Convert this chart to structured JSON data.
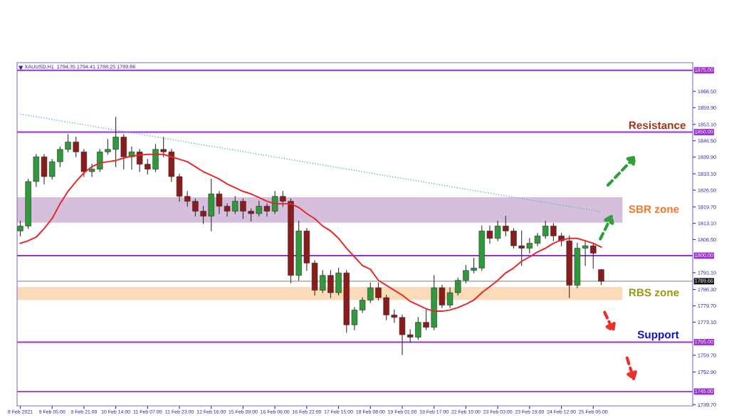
{
  "chart_data": {
    "type": "candlestick",
    "title": "XAUUSD,H1  1794.35 1794.41 1788.25 1789.66",
    "categories": [
      "8 Feb 2021",
      null,
      null,
      null,
      "9 Feb 05:00",
      null,
      null,
      null,
      "9 Feb 21:00",
      null,
      null,
      null,
      "10 Feb 14:00",
      null,
      null,
      null,
      "11 Feb 07:00",
      null,
      null,
      null,
      "11 Feb 23:00",
      null,
      null,
      null,
      "12 Feb 16:00",
      null,
      null,
      null,
      "15 Feb 09:00",
      null,
      null,
      null,
      "16 Feb 06:00",
      null,
      null,
      null,
      "16 Feb 22:00",
      null,
      null,
      null,
      "17 Feb 15:00",
      null,
      null,
      null,
      "18 Feb 08:00",
      null,
      null,
      null,
      "19 Feb 01:00",
      null,
      null,
      null,
      "19 Feb 17:00",
      null,
      null,
      null,
      "22 Feb 10:00",
      null,
      null,
      null,
      "23 Feb 03:00",
      null,
      null,
      null,
      "23 Feb 19:00",
      null,
      null,
      null,
      "24 Feb 12:00",
      null,
      null,
      null,
      "25 Feb 05:00",
      null
    ],
    "ohlc": [
      [
        1810,
        1814,
        1808,
        1812
      ],
      [
        1812,
        1831,
        1811,
        1830
      ],
      [
        1830,
        1841,
        1828,
        1840
      ],
      [
        1840,
        1841,
        1829,
        1832
      ],
      [
        1832,
        1839,
        1831,
        1838
      ],
      [
        1838,
        1844,
        1836,
        1843
      ],
      [
        1843,
        1849,
        1842,
        1846
      ],
      [
        1846,
        1848,
        1840,
        1842
      ],
      [
        1842,
        1843,
        1832,
        1834
      ],
      [
        1834,
        1837,
        1832,
        1835
      ],
      [
        1835,
        1843,
        1834,
        1842
      ],
      [
        1842,
        1847,
        1841,
        1843
      ],
      [
        1843,
        1856,
        1836,
        1848
      ],
      [
        1848,
        1849,
        1835,
        1840
      ],
      [
        1840,
        1844,
        1835,
        1842
      ],
      [
        1842,
        1843,
        1834,
        1837
      ],
      [
        1837,
        1839,
        1833,
        1835
      ],
      [
        1835,
        1845,
        1834,
        1843
      ],
      [
        1843,
        1848,
        1840,
        1842
      ],
      [
        1842,
        1843,
        1830,
        1832
      ],
      [
        1832,
        1833,
        1822,
        1824
      ],
      [
        1824,
        1826,
        1820,
        1822
      ],
      [
        1822,
        1823,
        1816,
        1818
      ],
      [
        1818,
        1820,
        1813,
        1816
      ],
      [
        1816,
        1831,
        1810,
        1825
      ],
      [
        1825,
        1826,
        1817,
        1820
      ],
      [
        1820,
        1821,
        1816,
        1818
      ],
      [
        1818,
        1824,
        1817,
        1822
      ],
      [
        1822,
        1823,
        1815,
        1818
      ],
      [
        1818,
        1819,
        1814,
        1817
      ],
      [
        1817,
        1822,
        1816,
        1820
      ],
      [
        1820,
        1821,
        1816,
        1818
      ],
      [
        1818,
        1826,
        1817,
        1824
      ],
      [
        1824,
        1826,
        1820,
        1822
      ],
      [
        1822,
        1823,
        1789,
        1792
      ],
      [
        1792,
        1814,
        1790,
        1810
      ],
      [
        1810,
        1811,
        1794,
        1797
      ],
      [
        1797,
        1798,
        1784,
        1786
      ],
      [
        1786,
        1794,
        1785,
        1792
      ],
      [
        1792,
        1794,
        1783,
        1785
      ],
      [
        1785,
        1795,
        1784,
        1793
      ],
      [
        1793,
        1794,
        1769,
        1772
      ],
      [
        1772,
        1779,
        1770,
        1778
      ],
      [
        1778,
        1783,
        1777,
        1782
      ],
      [
        1782,
        1789,
        1781,
        1787
      ],
      [
        1787,
        1789,
        1782,
        1783
      ],
      [
        1783,
        1784,
        1774,
        1776
      ],
      [
        1776,
        1778,
        1773,
        1775
      ],
      [
        1775,
        1776,
        1760,
        1768
      ],
      [
        1768,
        1770,
        1765,
        1767
      ],
      [
        1767,
        1775,
        1766,
        1773
      ],
      [
        1773,
        1778,
        1770,
        1771
      ],
      [
        1771,
        1792,
        1770,
        1787
      ],
      [
        1787,
        1788,
        1779,
        1780
      ],
      [
        1780,
        1787,
        1779,
        1785
      ],
      [
        1785,
        1791,
        1784,
        1790
      ],
      [
        1790,
        1796,
        1789,
        1794
      ],
      [
        1794,
        1799,
        1793,
        1795
      ],
      [
        1795,
        1812,
        1794,
        1810
      ],
      [
        1810,
        1812,
        1805,
        1807
      ],
      [
        1807,
        1814,
        1806,
        1812
      ],
      [
        1812,
        1816,
        1808,
        1810
      ],
      [
        1810,
        1811,
        1803,
        1804
      ],
      [
        1804,
        1810,
        1796,
        1803
      ],
      [
        1803,
        1807,
        1801,
        1805
      ],
      [
        1805,
        1809,
        1804,
        1808
      ],
      [
        1808,
        1814,
        1807,
        1812
      ],
      [
        1812,
        1813,
        1806,
        1808
      ],
      [
        1808,
        1809,
        1804,
        1806
      ],
      [
        1806,
        1808,
        1783,
        1788
      ],
      [
        1788,
        1805,
        1787,
        1803
      ],
      [
        1803,
        1806,
        1796,
        1804
      ],
      [
        1804,
        1805,
        1795,
        1801
      ],
      [
        1794.35,
        1794.41,
        1788.25,
        1789.66
      ]
    ],
    "series": [
      {
        "type": "line",
        "color": "#e8262a",
        "line_style": "solid",
        "values": [
          1805,
          1806,
          1807.5,
          1811,
          1815,
          1821,
          1826,
          1830,
          1833.5,
          1836,
          1837.5,
          1838,
          1838.5,
          1839.5,
          1840.3,
          1840.7,
          1841,
          1841,
          1841,
          1840,
          1839,
          1838,
          1836,
          1834,
          1832.5,
          1831,
          1829,
          1827.5,
          1826,
          1825,
          1823.5,
          1822,
          1821,
          1821,
          1821,
          1819.5,
          1817,
          1815,
          1812,
          1810,
          1807,
          1803,
          1799.5,
          1796,
          1794.5,
          1790,
          1788,
          1786,
          1784,
          1781.5,
          1780,
          1778.5,
          1777.5,
          1777.5,
          1778,
          1779,
          1780.4,
          1782,
          1785,
          1787.5,
          1790,
          1793,
          1795,
          1797.7,
          1799.5,
          1801.5,
          1803,
          1805,
          1806.3,
          1807,
          1807,
          1806,
          1805,
          1803.5
        ]
      },
      {
        "type": "line",
        "color": "#5fb8c8",
        "line_style": "dotted",
        "values": [
          1857.3,
          null,
          null,
          null,
          null,
          null,
          null,
          null,
          null,
          null,
          null,
          null,
          null,
          null,
          null,
          null,
          null,
          null,
          null,
          null,
          null,
          null,
          null,
          null,
          null,
          null,
          null,
          null,
          null,
          null,
          null,
          null,
          null,
          null,
          null,
          null,
          null,
          null,
          null,
          null,
          null,
          null,
          null,
          null,
          null,
          null,
          null,
          null,
          null,
          null,
          null,
          null,
          null,
          null,
          null,
          null,
          null,
          null,
          null,
          null,
          null,
          null,
          null,
          null,
          null,
          null,
          null,
          null,
          null,
          null,
          null,
          null,
          null,
          1817.7
        ]
      }
    ],
    "ylim": [
      1739.2,
      1878.1
    ],
    "yticks": [
      {
        "value": 1739.7,
        "label": "1739.70"
      },
      {
        "value": 1752.9,
        "label": "1752.90"
      },
      {
        "value": 1759.7,
        "label": "1759.70"
      },
      {
        "value": 1773.1,
        "label": "1773.10"
      },
      {
        "value": 1779.7,
        "label": "1779.70"
      },
      {
        "value": 1786.3,
        "label": "1786.30"
      },
      {
        "value": 1793.1,
        "label": "1793.10"
      },
      {
        "value": 1806.5,
        "label": "1806.50"
      },
      {
        "value": 1813.1,
        "label": "1813.10"
      },
      {
        "value": 1819.7,
        "label": "1819.70"
      },
      {
        "value": 1826.5,
        "label": "1826.50"
      },
      {
        "value": 1833.1,
        "label": "1833.10"
      },
      {
        "value": 1839.9,
        "label": "1839.90"
      },
      {
        "value": 1846.5,
        "label": "1846.50"
      },
      {
        "value": 1853.1,
        "label": "1853.10"
      },
      {
        "value": 1859.9,
        "label": "1859.90"
      },
      {
        "value": 1866.5,
        "label": "1866.50"
      }
    ],
    "ref_lines": [
      {
        "axis": "y",
        "value": 1875,
        "label": "1875.00",
        "color": "#9b30d0"
      },
      {
        "axis": "y",
        "value": 1850,
        "label": "1850.00",
        "color": "#9b30d0"
      },
      {
        "axis": "y",
        "value": 1800,
        "label": "1800.00",
        "color": "#9b30d0"
      },
      {
        "axis": "y",
        "value": 1789.66,
        "label": "1789.66",
        "color": "#9a9a9a"
      },
      {
        "axis": "y",
        "value": 1765,
        "label": "1765.00",
        "color": "#9b30d0"
      },
      {
        "axis": "y",
        "value": 1745,
        "label": "1745.00",
        "color": "#9b30d0"
      }
    ],
    "bands": [
      {
        "axis": "y",
        "from": 1813.3,
        "to": 1823.6,
        "label": "SBR zone",
        "color": "#d6bfdc"
      },
      {
        "axis": "y",
        "from": 1782.1,
        "to": 1787.3,
        "label": "RBS zone",
        "color": "#fcdcb8"
      }
    ],
    "annotations": [
      "Resistance",
      "Support"
    ]
  }
}
